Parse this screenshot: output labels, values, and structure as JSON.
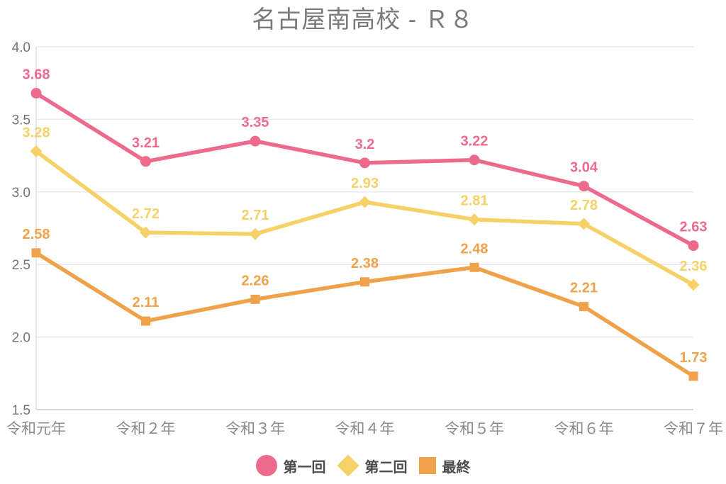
{
  "title": "名古屋南高校 - Ｒ８",
  "colors": {
    "background": "#ffffff",
    "title_text": "#7a7a7a",
    "y_axis_text": "#747474",
    "x_axis_text": "#8b8b8b",
    "gridline": "#e9e9e9",
    "axis_line": "#c8c8c8",
    "left_axis_line": "#e5e5e5",
    "legend_text": "#4c4c4c"
  },
  "chart_data": {
    "type": "line",
    "title": "名古屋南高校 - Ｒ８",
    "categories": [
      "令和元年",
      "令和２年",
      "令和３年",
      "令和４年",
      "令和５年",
      "令和６年",
      "令和７年"
    ],
    "series": [
      {
        "name": "第一回",
        "marker": "circle",
        "color": "#ec6b8d",
        "values": [
          3.68,
          3.21,
          3.35,
          3.2,
          3.22,
          3.04,
          2.63
        ]
      },
      {
        "name": "第二回",
        "marker": "diamond",
        "color": "#f6d168",
        "values": [
          3.28,
          2.72,
          2.71,
          2.93,
          2.81,
          2.78,
          2.36
        ]
      },
      {
        "name": "最終",
        "marker": "square",
        "color": "#f0a24b",
        "values": [
          2.58,
          2.11,
          2.26,
          2.38,
          2.48,
          2.21,
          1.73
        ]
      }
    ],
    "ylim": [
      1.5,
      4.0
    ],
    "yticks": [
      4.0,
      3.5,
      3.0,
      2.5,
      2.0,
      1.5
    ],
    "xlabel": "",
    "ylabel": "",
    "grid": "horizontal",
    "data_labels": true,
    "legend_position": "bottom"
  }
}
